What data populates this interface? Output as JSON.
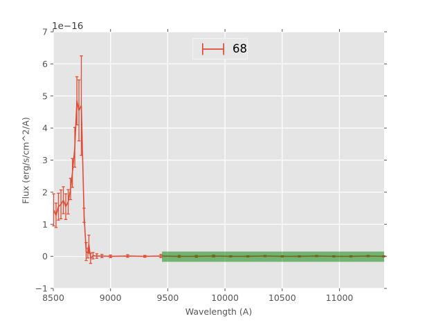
{
  "figure": {
    "offset_label": "1e−16",
    "xlabel": "Wavelength (A)",
    "ylabel": "Flux (erg/s/cm^2/A)"
  },
  "chart_data": {
    "type": "line",
    "subtype": "errorbar-spectrum",
    "title": "",
    "xlabel": "Wavelength (A)",
    "ylabel": "Flux (erg/s/cm^2/A)",
    "y_offset_factor": "1e-16",
    "xlim": [
      8500,
      11390
    ],
    "ylim": [
      -1,
      7
    ],
    "xticks": [
      8500,
      9000,
      9500,
      10000,
      10500,
      11000
    ],
    "yticks": [
      -1,
      0,
      1,
      2,
      3,
      4,
      5,
      6,
      7
    ],
    "grid": true,
    "legend": {
      "label": "68",
      "position": "upper center",
      "marker": "errorbar"
    },
    "series": [
      {
        "name": "68",
        "draw": "errorbar",
        "x": [
          8503,
          8524,
          8545,
          8567,
          8588,
          8609,
          8630,
          8651,
          8667,
          8688,
          8706,
          8724,
          8745,
          8769,
          8787,
          8802,
          8811,
          8826,
          8847,
          8880,
          8925,
          9000,
          9150,
          9300,
          9440,
          9600,
          9750,
          9900,
          10050,
          10200,
          10350,
          10500,
          10650,
          10800,
          10950,
          11100,
          11250,
          11388
        ],
        "y": [
          1.45,
          1.28,
          1.55,
          1.62,
          1.75,
          1.55,
          1.7,
          2.1,
          2.6,
          3.4,
          4.85,
          4.55,
          4.7,
          1.28,
          0.15,
          0.1,
          0.38,
          -0.06,
          0.02,
          0.01,
          0.01,
          0.0,
          0.01,
          0.0,
          0.01,
          0.0,
          0.0,
          0.01,
          0.0,
          0.0,
          0.01,
          0.0,
          0.0,
          0.01,
          0.0,
          0.0,
          0.01,
          0.0
        ],
        "yerr": [
          0.5,
          0.38,
          0.42,
          0.45,
          0.42,
          0.4,
          0.38,
          0.33,
          0.45,
          0.62,
          0.75,
          0.95,
          1.55,
          0.22,
          0.28,
          0.15,
          0.28,
          0.16,
          0.1,
          0.07,
          0.05,
          0.04,
          0.04,
          0.03,
          0.05,
          0.03,
          0.03,
          0.03,
          0.02,
          0.02,
          0.02,
          0.02,
          0.02,
          0.02,
          0.02,
          0.02,
          0.02,
          0.02
        ]
      }
    ],
    "band": {
      "x_start": 9450,
      "x_end": 11390,
      "y_low": -0.17,
      "y_high": 0.15
    },
    "colors": {
      "line": "#E24A33",
      "band_fill": "rgba(0,128,0,0.5)",
      "plot_bg": "#E5E5E5",
      "grid": "#FFFFFF",
      "tick": "#555555"
    }
  }
}
